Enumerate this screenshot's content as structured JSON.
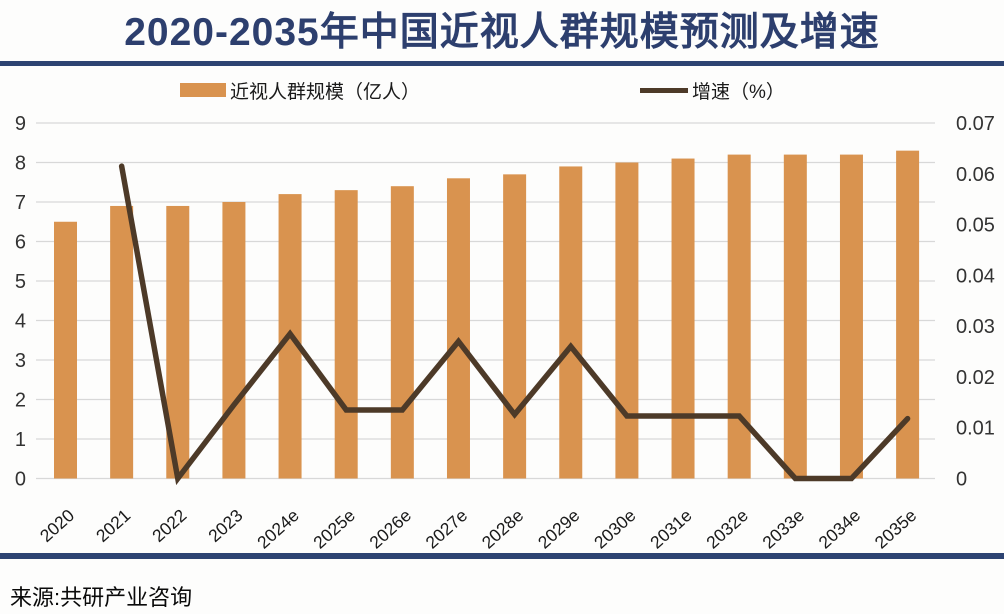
{
  "title": "2020-2035年中国近视人群规模预测及增速",
  "source_note": "来源:共研产业咨询",
  "legend": {
    "bar_label": "近视人群规模（亿人）",
    "line_label": "增速（%）"
  },
  "colors": {
    "title_navy": "#2d3f6e",
    "rule_navy": "#2d4372",
    "bar_orange": "#d9934f",
    "line_brown": "#4d3a28",
    "grid_gray": "#d8d8d8",
    "axis_text": "#333333",
    "category_text": "#1a1a1a"
  },
  "chart_data": {
    "type": "bar",
    "subtype": "combo-bar-line-dual-axis",
    "title": "2020-2035年中国近视人群规模预测及增速",
    "categories": [
      "2020",
      "2021",
      "2022",
      "2023",
      "2024e",
      "2025e",
      "2026e",
      "2027e",
      "2028e",
      "2029e",
      "2030e",
      "2031e",
      "2032e",
      "2033e",
      "2034e",
      "2035e"
    ],
    "series": [
      {
        "name": "近视人群规模（亿人）",
        "type": "bar",
        "axis": "left",
        "values": [
          6.5,
          6.9,
          6.9,
          7.0,
          7.2,
          7.3,
          7.4,
          7.6,
          7.7,
          7.9,
          8.0,
          8.1,
          8.2,
          8.2,
          8.2,
          8.3
        ]
      },
      {
        "name": "增速（%）",
        "type": "line",
        "axis": "right",
        "values": [
          null,
          0.0615,
          0,
          0.0145,
          0.0285,
          0.0135,
          0.0135,
          0.027,
          0.0126,
          0.026,
          0.0123,
          0.0123,
          0.0123,
          0,
          0,
          0.0118
        ]
      }
    ],
    "left_axis": {
      "min": 0,
      "max": 9,
      "step": 1,
      "ticks": [
        "0",
        "1",
        "2",
        "3",
        "4",
        "5",
        "6",
        "7",
        "8",
        "9"
      ]
    },
    "right_axis": {
      "min": 0,
      "max": 0.07,
      "step": 0.01,
      "ticks": [
        "0",
        "0.01",
        "0.02",
        "0.03",
        "0.04",
        "0.05",
        "0.06",
        "0.07"
      ]
    },
    "grid": "horizontal-only",
    "legend_position": "top",
    "x_label_rotation_deg": -42
  }
}
